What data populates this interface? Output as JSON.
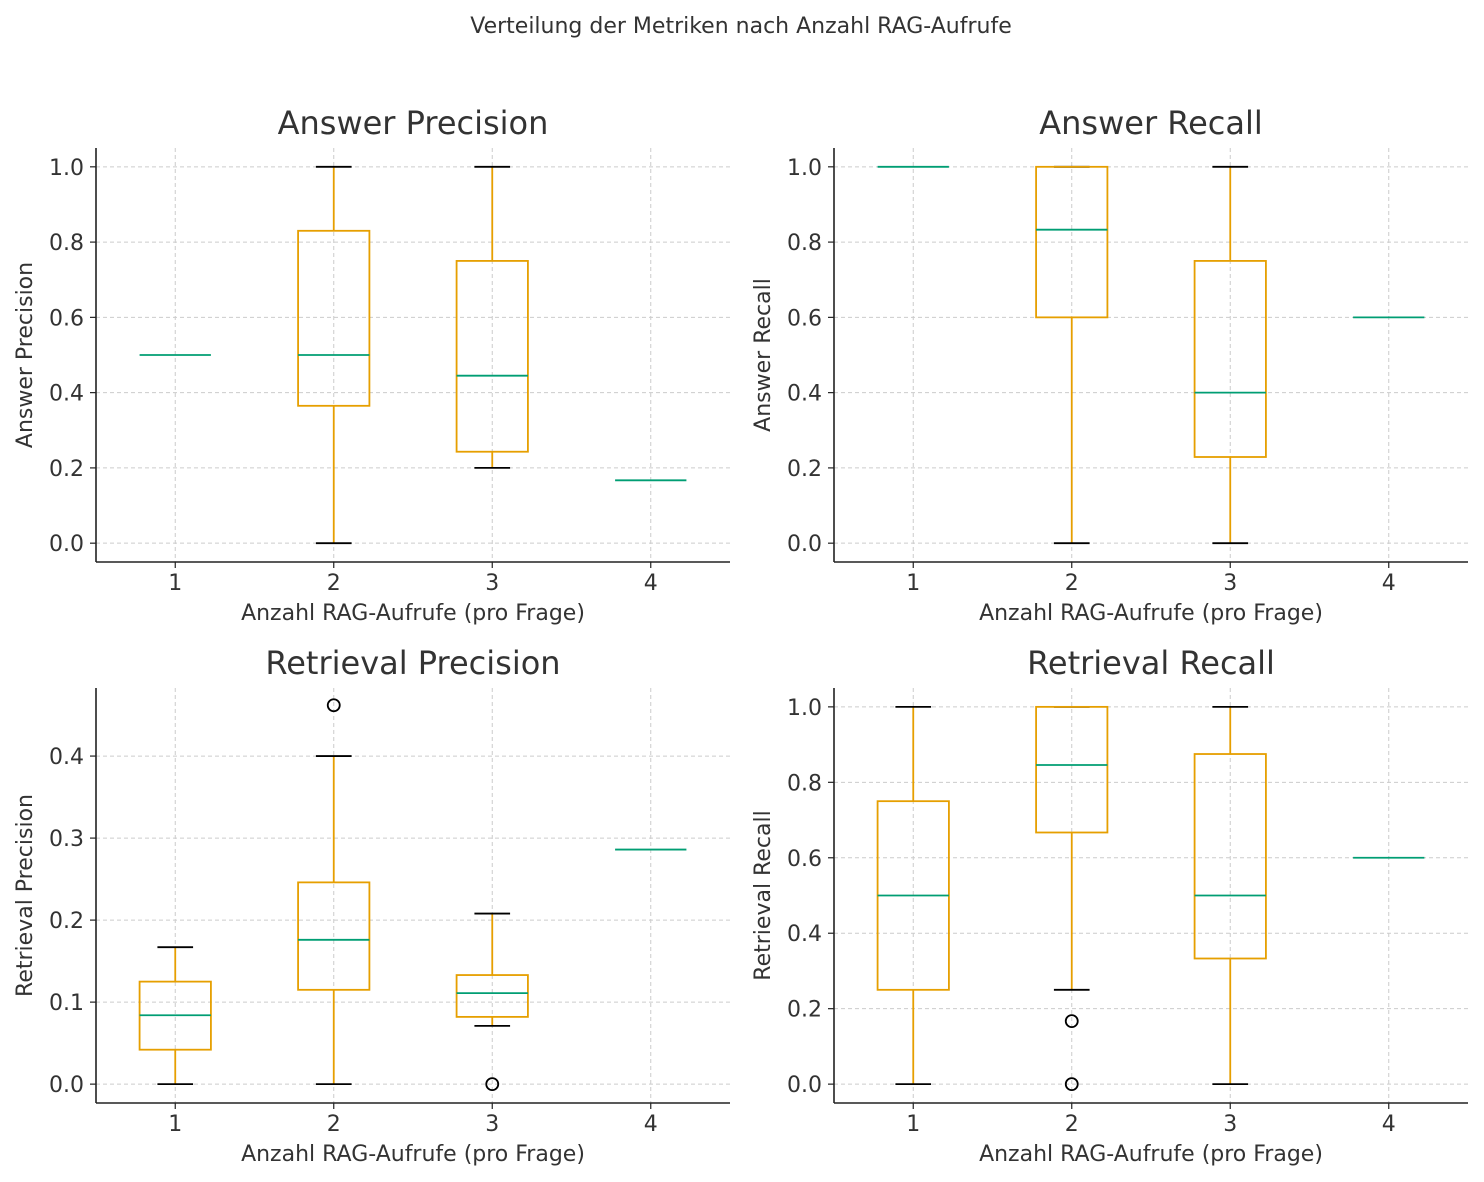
{
  "suptitle": "Verteilung der Metriken nach Anzahl RAG-Aufrufe",
  "colors": {
    "box": "#e69f00",
    "median": "#009e73",
    "whisker_cap": "#000000",
    "grid": "#cccccc",
    "axis": "#222222"
  },
  "chart_data": [
    {
      "type": "box",
      "title": "Answer Precision",
      "xlabel": "Anzahl RAG-Aufrufe (pro Frage)",
      "ylabel": "Answer Precision",
      "categories": [
        "1",
        "2",
        "3",
        "4"
      ],
      "ylim": [
        -0.05,
        1.05
      ],
      "yticks": [
        0.0,
        0.2,
        0.4,
        0.6,
        0.8,
        1.0
      ],
      "ytick_labels": [
        "0.0",
        "0.2",
        "0.4",
        "0.6",
        "0.8",
        "1.0"
      ],
      "grid": true,
      "boxes": [
        {
          "whislo": 0.5,
          "q1": 0.5,
          "med": 0.5,
          "q3": 0.5,
          "whishi": 0.5,
          "fliers": []
        },
        {
          "whislo": 0.0,
          "q1": 0.365,
          "med": 0.5,
          "q3": 0.83,
          "whishi": 1.0,
          "fliers": []
        },
        {
          "whislo": 0.2,
          "q1": 0.243,
          "med": 0.445,
          "q3": 0.75,
          "whishi": 1.0,
          "fliers": []
        },
        {
          "whislo": 0.167,
          "q1": 0.167,
          "med": 0.167,
          "q3": 0.167,
          "whishi": 0.167,
          "fliers": []
        }
      ]
    },
    {
      "type": "box",
      "title": "Answer Recall",
      "xlabel": "Anzahl RAG-Aufrufe (pro Frage)",
      "ylabel": "Answer Recall",
      "categories": [
        "1",
        "2",
        "3",
        "4"
      ],
      "ylim": [
        -0.05,
        1.05
      ],
      "yticks": [
        0.0,
        0.2,
        0.4,
        0.6,
        0.8,
        1.0
      ],
      "ytick_labels": [
        "0.0",
        "0.2",
        "0.4",
        "0.6",
        "0.8",
        "1.0"
      ],
      "grid": true,
      "boxes": [
        {
          "whislo": 1.0,
          "q1": 1.0,
          "med": 1.0,
          "q3": 1.0,
          "whishi": 1.0,
          "fliers": []
        },
        {
          "whislo": 0.0,
          "q1": 0.6,
          "med": 0.833,
          "q3": 1.0,
          "whishi": 1.0,
          "fliers": []
        },
        {
          "whislo": 0.0,
          "q1": 0.229,
          "med": 0.4,
          "q3": 0.75,
          "whishi": 1.0,
          "fliers": []
        },
        {
          "whislo": 0.6,
          "q1": 0.6,
          "med": 0.6,
          "q3": 0.6,
          "whishi": 0.6,
          "fliers": []
        }
      ]
    },
    {
      "type": "box",
      "title": "Retrieval Precision",
      "xlabel": "Anzahl RAG-Aufrufe (pro Frage)",
      "ylabel": "Retrieval Precision",
      "categories": [
        "1",
        "2",
        "3",
        "4"
      ],
      "ylim": [
        -0.023,
        0.483
      ],
      "yticks": [
        0.0,
        0.1,
        0.2,
        0.3,
        0.4
      ],
      "ytick_labels": [
        "0.0",
        "0.1",
        "0.2",
        "0.3",
        "0.4"
      ],
      "grid": true,
      "boxes": [
        {
          "whislo": 0.0,
          "q1": 0.042,
          "med": 0.084,
          "q3": 0.125,
          "whishi": 0.167,
          "fliers": []
        },
        {
          "whislo": 0.0,
          "q1": 0.115,
          "med": 0.176,
          "q3": 0.246,
          "whishi": 0.4,
          "fliers": [
            0.462
          ]
        },
        {
          "whislo": 0.071,
          "q1": 0.082,
          "med": 0.111,
          "q3": 0.133,
          "whishi": 0.208,
          "fliers": [
            0.0
          ]
        },
        {
          "whislo": 0.286,
          "q1": 0.286,
          "med": 0.286,
          "q3": 0.286,
          "whishi": 0.286,
          "fliers": []
        }
      ]
    },
    {
      "type": "box",
      "title": "Retrieval Recall",
      "xlabel": "Anzahl RAG-Aufrufe (pro Frage)",
      "ylabel": "Retrieval Recall",
      "categories": [
        "1",
        "2",
        "3",
        "4"
      ],
      "ylim": [
        -0.05,
        1.05
      ],
      "yticks": [
        0.0,
        0.2,
        0.4,
        0.6,
        0.8,
        1.0
      ],
      "ytick_labels": [
        "0.0",
        "0.2",
        "0.4",
        "0.6",
        "0.8",
        "1.0"
      ],
      "grid": true,
      "boxes": [
        {
          "whislo": 0.0,
          "q1": 0.25,
          "med": 0.5,
          "q3": 0.75,
          "whishi": 1.0,
          "fliers": []
        },
        {
          "whislo": 0.25,
          "q1": 0.667,
          "med": 0.846,
          "q3": 1.0,
          "whishi": 1.0,
          "fliers": [
            0.167,
            0.0
          ]
        },
        {
          "whislo": 0.0,
          "q1": 0.333,
          "med": 0.5,
          "q3": 0.875,
          "whishi": 1.0,
          "fliers": []
        },
        {
          "whislo": 0.6,
          "q1": 0.6,
          "med": 0.6,
          "q3": 0.6,
          "whishi": 0.6,
          "fliers": []
        }
      ]
    }
  ]
}
